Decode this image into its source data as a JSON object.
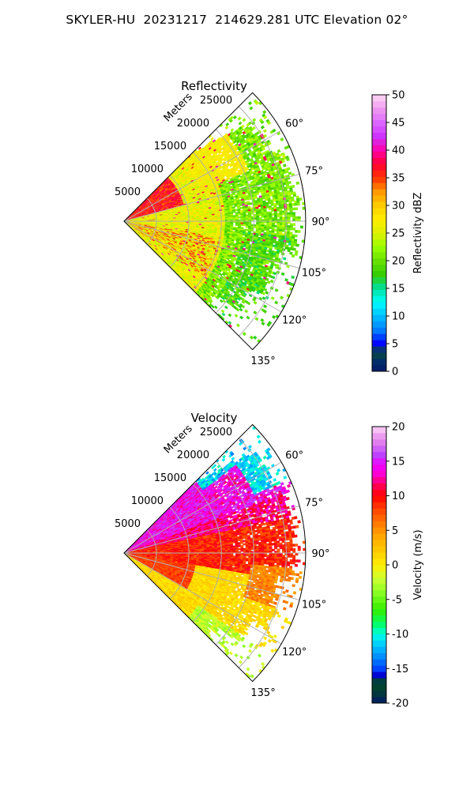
{
  "title": "SKYLER-HU  20231217  214629.281 UTC Elevation 02°",
  "chart_data": [
    {
      "type": "heatmap",
      "subtitle": "Reflectivity",
      "projection": "polar sector (PPI)",
      "radial_label": "Meters",
      "radial_ticks": [
        5000,
        10000,
        15000,
        20000,
        25000
      ],
      "radial_range": [
        0,
        28000
      ],
      "angle_ticks": [
        "60°",
        "75°",
        "90°",
        "105°",
        "120°",
        "135°"
      ],
      "angle_range_deg": [
        45,
        135
      ],
      "grid": true,
      "colorbar": {
        "label": "Reflectivity dBZ",
        "range": [
          0,
          50
        ],
        "ticks": [
          0,
          5,
          10,
          15,
          20,
          25,
          30,
          35,
          40,
          45,
          50
        ],
        "palette": "NWSRef-like"
      },
      "dominant_values": {
        "center_sector": "25–32 dBZ (yellow)",
        "near_range_60_75": "35–40 dBZ (red)",
        "far_range": "18–24 dBZ (green)"
      }
    },
    {
      "type": "heatmap",
      "subtitle": "Velocity",
      "projection": "polar sector (PPI)",
      "radial_label": "Meters",
      "radial_ticks": [
        5000,
        10000,
        15000,
        20000,
        25000
      ],
      "radial_range": [
        0,
        28000
      ],
      "angle_ticks": [
        "60°",
        "75°",
        "90°",
        "105°",
        "120°",
        "135°"
      ],
      "angle_range_deg": [
        45,
        135
      ],
      "grid": true,
      "colorbar": {
        "label": "Velocity (m/s)",
        "range": [
          -20,
          20
        ],
        "ticks": [
          -20,
          -15,
          -10,
          -5,
          0,
          5,
          10,
          15,
          20
        ],
        "palette": "NWSVel-like"
      },
      "dominant_values": {
        "azimuth_50_70": "13–18 m/s (magenta)",
        "azimuth_75_100": "8–12 m/s (red)",
        "azimuth_100_135": "0–3 m/s (yellow)",
        "far_edge_55_65": "-10 to -15 m/s (cyan)"
      }
    }
  ]
}
